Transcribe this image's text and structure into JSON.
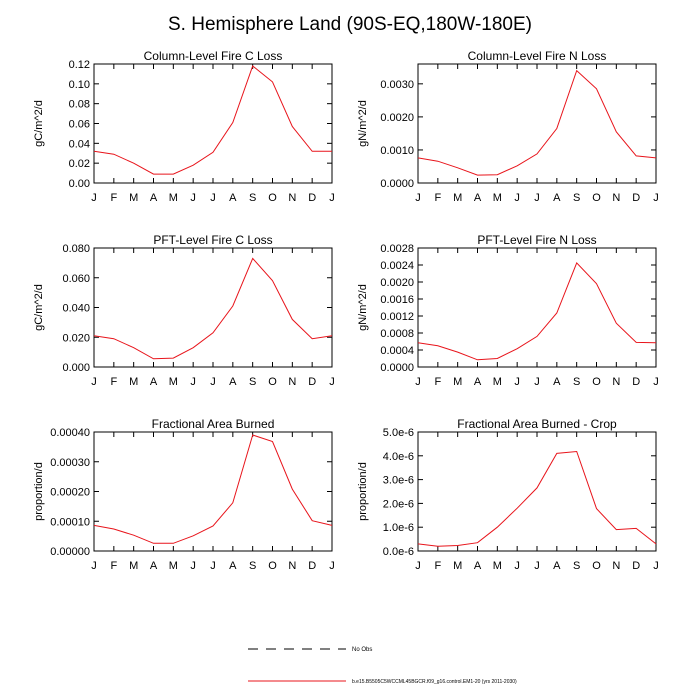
{
  "title": "S. Hemisphere Land (90S-EQ,180W-180E)",
  "month_labels": [
    "J",
    "F",
    "M",
    "A",
    "M",
    "J",
    "J",
    "A",
    "S",
    "O",
    "N",
    "D",
    "J"
  ],
  "series_color": "#e8141b",
  "legend": {
    "obs_label": "No Obs",
    "model_label": "b.e15.B5505C5WCCML45BGCR.f09_g16.control.EM1-20 (yrs 2011-2030)"
  },
  "chart_data": [
    {
      "type": "line",
      "title": "Column-Level Fire C Loss",
      "ylabel": "gC/m^2/d",
      "ylim": [
        0,
        0.12
      ],
      "yticks": [
        0,
        0.02,
        0.04,
        0.06,
        0.08,
        0.1,
        0.12
      ],
      "ytick_labels": [
        "0.00",
        "0.02",
        "0.04",
        "0.06",
        "0.08",
        "0.10",
        "0.12"
      ],
      "values": [
        0.032,
        0.029,
        0.02,
        0.009,
        0.009,
        0.018,
        0.031,
        0.061,
        0.118,
        0.102,
        0.057,
        0.032,
        0.032
      ]
    },
    {
      "type": "line",
      "title": "Column-Level Fire N Loss",
      "ylabel": "gN/m^2/d",
      "ylim": [
        0,
        0.0036
      ],
      "yticks": [
        0,
        0.001,
        0.002,
        0.003
      ],
      "ytick_labels": [
        "0.0000",
        "0.0010",
        "0.0020",
        "0.0030"
      ],
      "values": [
        0.00076,
        0.00066,
        0.00046,
        0.00024,
        0.00025,
        0.00052,
        0.00088,
        0.00165,
        0.0034,
        0.00285,
        0.00155,
        0.00082,
        0.00076
      ]
    },
    {
      "type": "line",
      "title": "PFT-Level Fire C Loss",
      "ylabel": "gC/m^2/d",
      "ylim": [
        0,
        0.08
      ],
      "yticks": [
        0,
        0.02,
        0.04,
        0.06,
        0.08
      ],
      "ytick_labels": [
        "0.000",
        "0.020",
        "0.040",
        "0.060",
        "0.080"
      ],
      "values": [
        0.021,
        0.019,
        0.013,
        0.0055,
        0.006,
        0.013,
        0.023,
        0.041,
        0.073,
        0.058,
        0.032,
        0.019,
        0.021
      ]
    },
    {
      "type": "line",
      "title": "PFT-Level Fire N Loss",
      "ylabel": "gN/m^2/d",
      "ylim": [
        0,
        0.0028
      ],
      "yticks": [
        0,
        0.0004,
        0.0008,
        0.0012,
        0.0016,
        0.002,
        0.0024,
        0.0028
      ],
      "ytick_labels": [
        "0.0000",
        "0.0004",
        "0.0008",
        "0.0012",
        "0.0016",
        "0.0020",
        "0.0024",
        "0.0028"
      ],
      "values": [
        0.00057,
        0.0005,
        0.00035,
        0.00017,
        0.0002,
        0.00043,
        0.00072,
        0.00127,
        0.00245,
        0.00196,
        0.00103,
        0.00058,
        0.00057
      ]
    },
    {
      "type": "line",
      "title": "Fractional Area Burned",
      "ylabel": "proportion/d",
      "ylim": [
        0,
        0.0004
      ],
      "yticks": [
        0,
        0.0001,
        0.0002,
        0.0003,
        0.0004
      ],
      "ytick_labels": [
        "0.00000",
        "0.00010",
        "0.00020",
        "0.00030",
        "0.00040"
      ],
      "values": [
        8.6e-05,
        7.4e-05,
        5.3e-05,
        2.6e-05,
        2.6e-05,
        5.1e-05,
        8.4e-05,
        0.000162,
        0.00039,
        0.000368,
        0.000208,
        0.000102,
        8.6e-05
      ]
    },
    {
      "type": "line",
      "title": "Fractional Area Burned - Crop",
      "ylabel": "proportion/d",
      "ylim": [
        0,
        5e-06
      ],
      "yticks": [
        0,
        1e-06,
        2e-06,
        3e-06,
        4e-06,
        5e-06
      ],
      "ytick_labels": [
        "0.0e-6",
        "1.0e-6",
        "2.0e-6",
        "3.0e-6",
        "4.0e-6",
        "5.0e-6"
      ],
      "values": [
        3e-07,
        2e-07,
        2.3e-07,
        3.5e-07,
        1e-06,
        1.8e-06,
        2.65e-06,
        4.1e-06,
        4.18e-06,
        1.78e-06,
        9e-07,
        9.5e-07,
        3e-07
      ]
    }
  ]
}
